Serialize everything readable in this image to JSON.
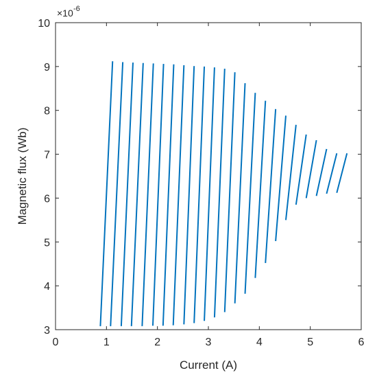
{
  "chart_data": {
    "type": "line",
    "title": "",
    "xlabel": "Current (A)",
    "ylabel": "Magnetic flux (Wb)",
    "xlim": [
      0,
      6
    ],
    "ylim": [
      3,
      10
    ],
    "x_ticks": [
      "0",
      "1",
      "2",
      "3",
      "4",
      "5",
      "6"
    ],
    "y_ticks": [
      "3",
      "4",
      "5",
      "6",
      "7",
      "8",
      "9",
      "10"
    ],
    "y_exponent_base": "×10",
    "y_exponent_power": "-6",
    "grid": false,
    "box": true,
    "line_color": "#0072BD",
    "axis_color": "#262626",
    "segments": [
      {
        "x": [
          0.88,
          1.12
        ],
        "y": [
          3.08,
          9.12
        ]
      },
      {
        "x": [
          1.08,
          1.32
        ],
        "y": [
          3.08,
          9.1
        ]
      },
      {
        "x": [
          1.29,
          1.52
        ],
        "y": [
          3.08,
          9.09
        ]
      },
      {
        "x": [
          1.49,
          1.72
        ],
        "y": [
          3.08,
          9.08
        ]
      },
      {
        "x": [
          1.7,
          1.92
        ],
        "y": [
          3.08,
          9.07
        ]
      },
      {
        "x": [
          1.91,
          2.12
        ],
        "y": [
          3.09,
          9.06
        ]
      },
      {
        "x": [
          2.11,
          2.32
        ],
        "y": [
          3.09,
          9.05
        ]
      },
      {
        "x": [
          2.31,
          2.52
        ],
        "y": [
          3.1,
          9.03
        ]
      },
      {
        "x": [
          2.52,
          2.72
        ],
        "y": [
          3.12,
          9.01
        ]
      },
      {
        "x": [
          2.72,
          2.92
        ],
        "y": [
          3.15,
          9.0
        ]
      },
      {
        "x": [
          2.92,
          3.12
        ],
        "y": [
          3.2,
          8.98
        ]
      },
      {
        "x": [
          3.12,
          3.32
        ],
        "y": [
          3.28,
          8.95
        ]
      },
      {
        "x": [
          3.32,
          3.52
        ],
        "y": [
          3.4,
          8.87
        ]
      },
      {
        "x": [
          3.52,
          3.72
        ],
        "y": [
          3.6,
          8.62
        ]
      },
      {
        "x": [
          3.72,
          3.92
        ],
        "y": [
          3.82,
          8.4
        ]
      },
      {
        "x": [
          3.92,
          4.12
        ],
        "y": [
          4.18,
          8.22
        ]
      },
      {
        "x": [
          4.12,
          4.32
        ],
        "y": [
          4.52,
          8.03
        ]
      },
      {
        "x": [
          4.32,
          4.52
        ],
        "y": [
          5.02,
          7.88
        ]
      },
      {
        "x": [
          4.52,
          4.72
        ],
        "y": [
          5.5,
          7.67
        ]
      },
      {
        "x": [
          4.72,
          4.92
        ],
        "y": [
          5.85,
          7.45
        ]
      },
      {
        "x": [
          4.92,
          5.12
        ],
        "y": [
          6.0,
          7.32
        ]
      },
      {
        "x": [
          5.12,
          5.32
        ],
        "y": [
          6.05,
          7.12
        ]
      },
      {
        "x": [
          5.32,
          5.52
        ],
        "y": [
          6.1,
          7.02
        ]
      },
      {
        "x": [
          5.52,
          5.72
        ],
        "y": [
          6.12,
          7.02
        ]
      }
    ]
  }
}
